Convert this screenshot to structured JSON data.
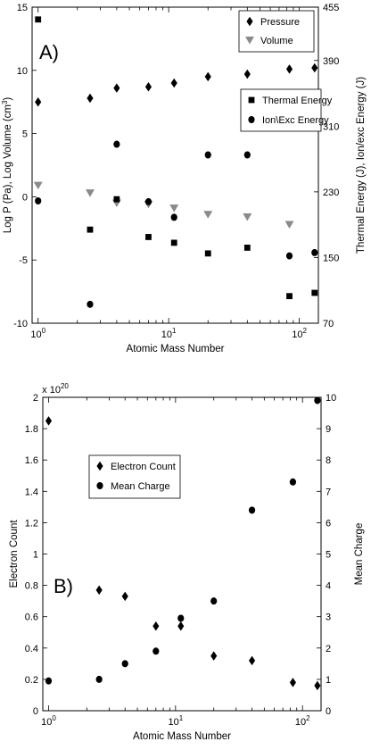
{
  "chart_data": [
    {
      "panel_label": "A)",
      "type": "scatter",
      "xlabel": "Atomic Mass Number",
      "xscale": "log",
      "xlim": [
        0.9,
        140
      ],
      "x_tick_labels": [
        {
          "base": "10",
          "exp": "0"
        },
        {
          "base": "10",
          "exp": "1"
        },
        {
          "base": "10",
          "exp": "2"
        }
      ],
      "x_tick_values": [
        1,
        10,
        100
      ],
      "ylabel_left": "Log P (Pa), Log Volume (cm³)",
      "ylabel_left_parts": {
        "pre": "Log P (Pa), Log Volume (cm",
        "sup": "3",
        "post": ")"
      },
      "ylim_left": [
        -10,
        15
      ],
      "yticks_left": [
        -10,
        -5,
        0,
        5,
        10,
        15
      ],
      "ylabel_right": "Thermal Energy (J), Ion/exc Energy (J)",
      "ylim_right": [
        70,
        455
      ],
      "yticks_right": [
        70,
        150,
        230,
        310,
        390,
        455
      ],
      "grid": false,
      "legend_left_axis": {
        "placement": "top-right",
        "entries": [
          "Pressure",
          "Volume"
        ]
      },
      "legend_right_axis": {
        "placement": "upper-right",
        "entries": [
          "Thermal Energy",
          "Ion\\Exc Energy"
        ]
      },
      "series": [
        {
          "name": "Pressure",
          "marker": "diamond",
          "color": "#000000",
          "axis": "left",
          "x": [
            1,
            2.5,
            4,
            7,
            11,
            20,
            40,
            84,
            131
          ],
          "y": [
            7.5,
            7.8,
            8.6,
            8.7,
            9.0,
            9.5,
            9.7,
            10.1,
            10.2
          ]
        },
        {
          "name": "Volume",
          "marker": "triangle-down",
          "color": "#8a8a8a",
          "axis": "left",
          "x": [
            1,
            2.5,
            4,
            7,
            11,
            20,
            40,
            84
          ],
          "y": [
            0.9,
            0.3,
            -0.5,
            -0.6,
            -0.9,
            -1.4,
            -1.6,
            -2.2
          ]
        },
        {
          "name": "Thermal Energy",
          "marker": "square",
          "color": "#000000",
          "axis": "right",
          "x": [
            1,
            2.5,
            4,
            7,
            11,
            20,
            40,
            84,
            131
          ],
          "y": [
            440,
            184,
            221,
            175,
            168,
            155,
            162,
            103,
            107
          ]
        },
        {
          "name": "Ion\\Exc Energy",
          "marker": "circle",
          "color": "#000000",
          "axis": "right",
          "x": [
            1,
            2.5,
            4,
            7,
            11,
            20,
            40,
            84,
            131
          ],
          "y": [
            219,
            93,
            288,
            218,
            199,
            275,
            275,
            152,
            156
          ]
        }
      ]
    },
    {
      "panel_label": "B)",
      "type": "scatter",
      "xlabel": "Atomic Mass Number",
      "xscale": "log",
      "xlim": [
        0.9,
        140
      ],
      "x_tick_labels": [
        {
          "base": "10",
          "exp": "0"
        },
        {
          "base": "10",
          "exp": "1"
        },
        {
          "base": "10",
          "exp": "2"
        }
      ],
      "x_tick_values": [
        1,
        10,
        100
      ],
      "ylabel_left": "Electron Count",
      "ylim_left": [
        0,
        2
      ],
      "yticks_left": [
        0,
        0.2,
        0.4,
        0.6,
        0.8,
        1,
        1.2,
        1.4,
        1.6,
        1.8,
        2
      ],
      "ytick_left_labels": [
        "0",
        "0.2",
        "0.4",
        "0.6",
        "0.8",
        "1",
        "1.2",
        "1.4",
        "1.6",
        "1.8",
        "2"
      ],
      "y_multiplier": {
        "base": "x 10",
        "exp": "20"
      },
      "ylabel_right": "Mean Charge",
      "ylim_right": [
        0,
        10
      ],
      "yticks_right": [
        0,
        1,
        2,
        3,
        4,
        5,
        6,
        7,
        8,
        9,
        10
      ],
      "grid": false,
      "legend": {
        "placement": "upper-left",
        "entries": [
          "Electron Count",
          "Mean Charge"
        ]
      },
      "series": [
        {
          "name": "Electron Count",
          "marker": "diamond",
          "color": "#000000",
          "axis": "left",
          "x": [
            1,
            2.5,
            4,
            7,
            11,
            20,
            40,
            84,
            131
          ],
          "y": [
            1.85,
            0.77,
            0.73,
            0.54,
            0.54,
            0.35,
            0.32,
            0.18,
            0.16
          ]
        },
        {
          "name": "Mean Charge",
          "marker": "circle",
          "color": "#000000",
          "axis": "right",
          "x": [
            1,
            2.5,
            4,
            7,
            11,
            20,
            40,
            84,
            131
          ],
          "y": [
            0.95,
            1.0,
            1.5,
            1.9,
            2.95,
            3.5,
            6.4,
            7.3,
            9.9
          ]
        }
      ]
    }
  ]
}
